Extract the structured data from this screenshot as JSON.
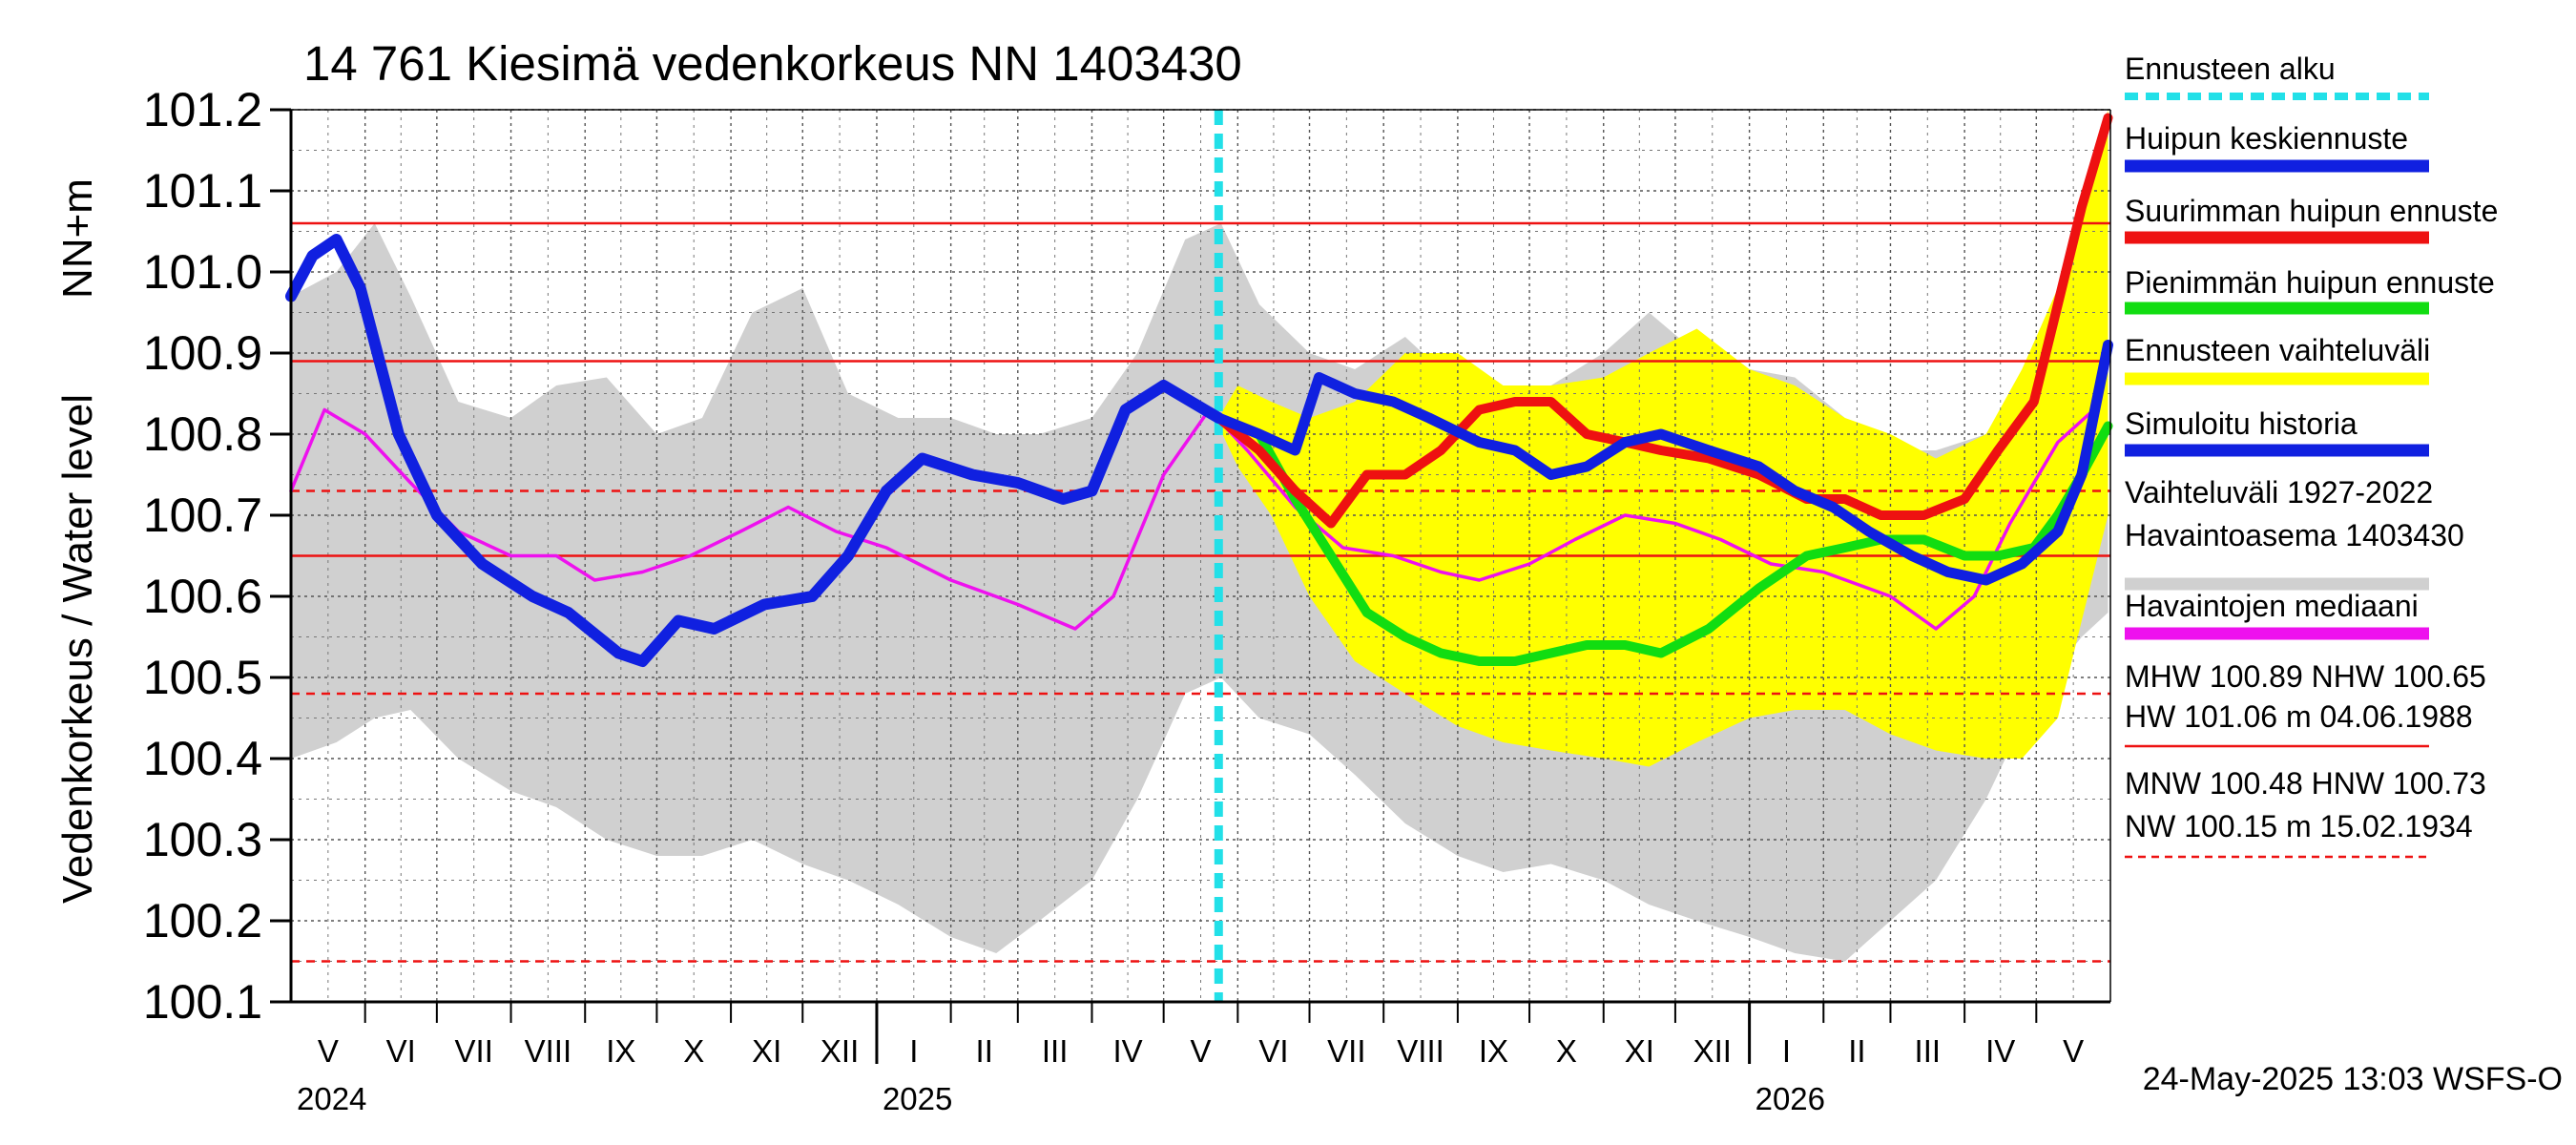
{
  "chart_data": {
    "type": "line",
    "title": "14 761 Kiesimä vedenkorkeus NN 1403430",
    "ylabel": "Vedenkorkeus / Water level",
    "ylabel_unit": "NN+m",
    "ylim": [
      100.1,
      101.2
    ],
    "y_ticks": [
      "100.1",
      "100.2",
      "100.3",
      "100.4",
      "100.5",
      "100.6",
      "100.7",
      "100.8",
      "100.9",
      "101.0",
      "101.1",
      "101.2"
    ],
    "x_start": "2024-05-01",
    "x_end": "2026-05-31",
    "grid": true,
    "month_labels": [
      "V",
      "VI",
      "VII",
      "VIII",
      "IX",
      "X",
      "XI",
      "XII",
      "I",
      "II",
      "III",
      "IV",
      "V",
      "VI",
      "VII",
      "VIII",
      "IX",
      "X",
      "XI",
      "XII",
      "I",
      "II",
      "III",
      "IV",
      "V"
    ],
    "year_labels": [
      {
        "label": "2024",
        "date": "2024-05-01"
      },
      {
        "label": "2025",
        "date": "2025-01-01"
      },
      {
        "label": "2026",
        "date": "2026-01-01"
      }
    ],
    "forecast_start": "2025-05-24",
    "reference_lines": {
      "solid": [
        101.06,
        100.89,
        100.65
      ],
      "dashed": [
        100.73,
        100.48,
        100.15
      ]
    },
    "legend": [
      {
        "label": "Ennusteen alku",
        "color": "#22e0e8",
        "style": "dashed"
      },
      {
        "label": "Huipun keskiennuste",
        "color": "#1020e0",
        "style": "line"
      },
      {
        "label": "Suurimman huipun ennuste",
        "color": "#ee1111",
        "style": "line"
      },
      {
        "label": "Pienimmän huipun ennuste",
        "color": "#11dd11",
        "style": "line"
      },
      {
        "label": "Ennusteen vaihteluväli",
        "color": "#ffff00",
        "style": "line"
      },
      {
        "label": "Simuloitu historia",
        "color": "#1020e0",
        "style": "line"
      },
      {
        "label": "Vaihteluväli 1927-2022",
        "label2": " Havaintoasema 1403430",
        "color": "#d0d0d0",
        "style": "line"
      },
      {
        "label": "Havaintojen mediaani",
        "color": "#ee11ee",
        "style": "line"
      },
      {
        "label": "MHW 100.89 NHW 100.65",
        "label2": "HW 101.06 m 04.06.1988",
        "color": "#ee1111",
        "style": "thin"
      },
      {
        "label": "MNW 100.48 HNW 100.73",
        "label2": "NW 100.15 m 15.02.1934",
        "color": "#ee1111",
        "style": "thin-dashed"
      }
    ],
    "footer": "24-May-2025 13:03 WSFS-O",
    "series": {
      "historical_range": {
        "color": "#d0d0d0",
        "x": [
          "2024-05-01",
          "2024-05-20",
          "2024-06-05",
          "2024-06-20",
          "2024-07-10",
          "2024-08-01",
          "2024-08-20",
          "2024-09-10",
          "2024-10-01",
          "2024-10-20",
          "2024-11-10",
          "2024-12-01",
          "2024-12-20",
          "2025-01-10",
          "2025-02-01",
          "2025-02-20",
          "2025-03-10",
          "2025-04-01",
          "2025-04-20",
          "2025-05-10",
          "2025-05-25",
          "2025-06-10",
          "2025-07-01",
          "2025-07-20",
          "2025-08-10",
          "2025-09-01",
          "2025-09-20",
          "2025-10-10",
          "2025-11-01",
          "2025-11-20",
          "2025-12-10",
          "2026-01-01",
          "2026-01-20",
          "2026-02-10",
          "2026-03-01",
          "2026-03-20",
          "2026-04-10",
          "2026-05-01",
          "2026-05-20",
          "2026-05-31"
        ],
        "high": [
          100.97,
          101.0,
          101.06,
          100.97,
          100.84,
          100.82,
          100.86,
          100.87,
          100.8,
          100.82,
          100.95,
          100.98,
          100.85,
          100.82,
          100.82,
          100.8,
          100.8,
          100.82,
          100.9,
          101.04,
          101.06,
          100.96,
          100.9,
          100.88,
          100.92,
          100.86,
          100.84,
          100.86,
          100.9,
          100.95,
          100.9,
          100.88,
          100.87,
          100.82,
          100.78,
          100.78,
          100.8,
          100.9,
          101.02,
          101.0
        ],
        "low": [
          100.4,
          100.42,
          100.45,
          100.46,
          100.4,
          100.36,
          100.34,
          100.3,
          100.28,
          100.28,
          100.3,
          100.27,
          100.25,
          100.22,
          100.18,
          100.16,
          100.2,
          100.25,
          100.35,
          100.48,
          100.5,
          100.45,
          100.43,
          100.38,
          100.32,
          100.28,
          100.26,
          100.27,
          100.25,
          100.22,
          100.2,
          100.18,
          100.16,
          100.15,
          100.2,
          100.25,
          100.35,
          100.48,
          100.55,
          100.58
        ]
      },
      "forecast_range": {
        "color": "#ffff00",
        "x": [
          "2025-05-24",
          "2025-06-01",
          "2025-06-15",
          "2025-07-01",
          "2025-07-20",
          "2025-08-10",
          "2025-09-01",
          "2025-09-20",
          "2025-10-10",
          "2025-11-01",
          "2025-11-20",
          "2025-12-10",
          "2026-01-01",
          "2026-01-20",
          "2026-02-10",
          "2026-03-01",
          "2026-03-20",
          "2026-04-10",
          "2026-04-25",
          "2026-05-10",
          "2026-05-20",
          "2026-05-31"
        ],
        "high": [
          100.82,
          100.86,
          100.84,
          100.82,
          100.84,
          100.9,
          100.9,
          100.86,
          100.86,
          100.87,
          100.9,
          100.93,
          100.88,
          100.86,
          100.82,
          100.8,
          100.77,
          100.8,
          100.88,
          100.98,
          101.07,
          101.2
        ],
        "low": [
          100.81,
          100.76,
          100.7,
          100.6,
          100.52,
          100.48,
          100.44,
          100.42,
          100.41,
          100.4,
          100.39,
          100.42,
          100.45,
          100.46,
          100.46,
          100.43,
          100.41,
          100.4,
          100.4,
          100.45,
          100.57,
          100.7
        ]
      },
      "median": {
        "name": "Havaintojen mediaani",
        "color": "#ee11ee",
        "x": [
          "2024-05-01",
          "2024-05-15",
          "2024-06-01",
          "2024-06-20",
          "2024-07-10",
          "2024-08-01",
          "2024-08-20",
          "2024-09-05",
          "2024-09-25",
          "2024-10-15",
          "2024-11-05",
          "2024-11-25",
          "2024-12-15",
          "2025-01-05",
          "2025-02-01",
          "2025-03-01",
          "2025-03-25",
          "2025-04-10",
          "2025-05-01",
          "2025-05-20",
          "2025-06-05",
          "2025-06-25",
          "2025-07-15",
          "2025-08-05",
          "2025-08-25",
          "2025-09-10",
          "2025-10-01",
          "2025-10-20",
          "2025-11-10",
          "2025-12-01",
          "2025-12-20",
          "2026-01-10",
          "2026-02-01",
          "2026-03-01",
          "2026-03-20",
          "2026-04-05",
          "2026-04-20",
          "2026-05-10",
          "2026-05-25"
        ],
        "y": [
          100.73,
          100.83,
          100.8,
          100.74,
          100.68,
          100.65,
          100.65,
          100.62,
          100.63,
          100.65,
          100.68,
          100.71,
          100.68,
          100.66,
          100.62,
          100.59,
          100.56,
          100.6,
          100.75,
          100.83,
          100.78,
          100.71,
          100.66,
          100.65,
          100.63,
          100.62,
          100.64,
          100.67,
          100.7,
          100.69,
          100.67,
          100.64,
          100.63,
          100.6,
          100.56,
          100.6,
          100.69,
          100.79,
          100.83
        ]
      },
      "simulated_history": {
        "name": "Simuloitu historia",
        "color": "#1020e0",
        "x": [
          "2024-05-01",
          "2024-05-10",
          "2024-05-20",
          "2024-05-30",
          "2024-06-15",
          "2024-07-01",
          "2024-07-20",
          "2024-08-10",
          "2024-08-25",
          "2024-09-15",
          "2024-09-25",
          "2024-10-10",
          "2024-10-25",
          "2024-11-15",
          "2024-12-05",
          "2024-12-20",
          "2025-01-05",
          "2025-01-20",
          "2025-02-10",
          "2025-03-01",
          "2025-03-20",
          "2025-04-01",
          "2025-04-15",
          "2025-05-01",
          "2025-05-24"
        ],
        "y": [
          100.97,
          101.02,
          101.04,
          100.98,
          100.8,
          100.7,
          100.64,
          100.6,
          100.58,
          100.53,
          100.52,
          100.57,
          100.56,
          100.59,
          100.6,
          100.65,
          100.73,
          100.77,
          100.75,
          100.74,
          100.72,
          100.73,
          100.83,
          100.86,
          100.82
        ]
      },
      "mean_forecast": {
        "name": "Huipun keskiennuste",
        "color": "#1020e0",
        "x": [
          "2025-05-24",
          "2025-06-10",
          "2025-06-25",
          "2025-07-05",
          "2025-07-20",
          "2025-08-05",
          "2025-08-20",
          "2025-09-10",
          "2025-09-25",
          "2025-10-10",
          "2025-10-25",
          "2025-11-10",
          "2025-11-25",
          "2025-12-15",
          "2026-01-05",
          "2026-01-20",
          "2026-02-05",
          "2026-02-20",
          "2026-03-10",
          "2026-03-25",
          "2026-04-10",
          "2026-04-25",
          "2026-05-10",
          "2026-05-20",
          "2026-05-31"
        ],
        "y": [
          100.82,
          100.8,
          100.78,
          100.87,
          100.85,
          100.84,
          100.82,
          100.79,
          100.78,
          100.75,
          100.76,
          100.79,
          100.8,
          100.78,
          100.76,
          100.73,
          100.71,
          100.68,
          100.65,
          100.63,
          100.62,
          100.64,
          100.68,
          100.75,
          100.91
        ]
      },
      "max_forecast": {
        "name": "Suurimman huipun ennuste",
        "color": "#ee1111",
        "x": [
          "2025-05-24",
          "2025-06-10",
          "2025-06-25",
          "2025-07-10",
          "2025-07-25",
          "2025-08-10",
          "2025-08-25",
          "2025-09-10",
          "2025-09-25",
          "2025-10-10",
          "2025-10-25",
          "2025-11-10",
          "2025-11-25",
          "2025-12-15",
          "2026-01-05",
          "2026-01-25",
          "2026-02-10",
          "2026-02-25",
          "2026-03-15",
          "2026-04-01",
          "2026-04-15",
          "2026-04-30",
          "2026-05-10",
          "2026-05-20",
          "2026-05-31"
        ],
        "y": [
          100.82,
          100.78,
          100.73,
          100.69,
          100.75,
          100.75,
          100.78,
          100.83,
          100.84,
          100.84,
          100.8,
          100.79,
          100.78,
          100.77,
          100.75,
          100.72,
          100.72,
          100.7,
          100.7,
          100.72,
          100.78,
          100.84,
          100.96,
          101.08,
          101.19
        ]
      },
      "min_forecast": {
        "name": "Pienimmän huipun ennuste",
        "color": "#11dd11",
        "x": [
          "2025-05-24",
          "2025-06-10",
          "2025-06-25",
          "2025-07-10",
          "2025-07-25",
          "2025-08-10",
          "2025-08-25",
          "2025-09-10",
          "2025-09-25",
          "2025-10-10",
          "2025-10-25",
          "2025-11-10",
          "2025-11-25",
          "2025-12-15",
          "2026-01-05",
          "2026-01-25",
          "2026-02-10",
          "2026-02-25",
          "2026-03-15",
          "2026-04-01",
          "2026-04-15",
          "2026-04-30",
          "2026-05-10",
          "2026-05-20",
          "2026-05-31"
        ],
        "y": [
          100.82,
          100.8,
          100.72,
          100.65,
          100.58,
          100.55,
          100.53,
          100.52,
          100.52,
          100.53,
          100.54,
          100.54,
          100.53,
          100.56,
          100.61,
          100.65,
          100.66,
          100.67,
          100.67,
          100.65,
          100.65,
          100.66,
          100.7,
          100.75,
          100.81
        ]
      }
    }
  }
}
